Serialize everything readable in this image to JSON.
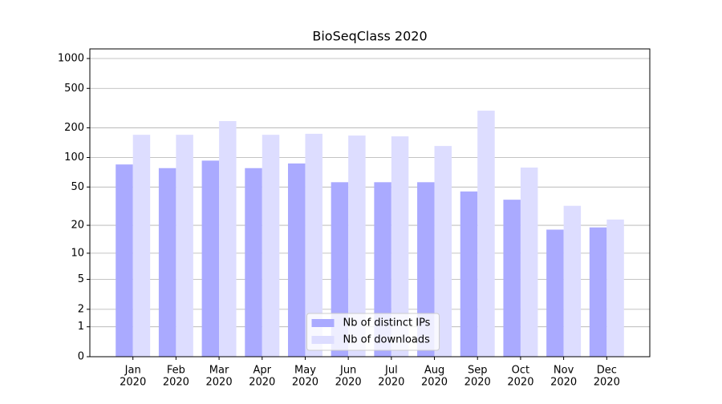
{
  "chart_data": {
    "type": "bar",
    "title": "BioSeqClass 2020",
    "categories": [
      [
        "Jan",
        "2020"
      ],
      [
        "Feb",
        "2020"
      ],
      [
        "Mar",
        "2020"
      ],
      [
        "Apr",
        "2020"
      ],
      [
        "May",
        "2020"
      ],
      [
        "Jun",
        "2020"
      ],
      [
        "Jul",
        "2020"
      ],
      [
        "Aug",
        "2020"
      ],
      [
        "Sep",
        "2020"
      ],
      [
        "Oct",
        "2020"
      ],
      [
        "Nov",
        "2020"
      ],
      [
        "Dec",
        "2020"
      ]
    ],
    "series": [
      {
        "name": "Nb of distinct IPs",
        "color": "#aaaaff",
        "values": [
          85,
          78,
          93,
          78,
          87,
          56,
          56,
          56,
          45,
          37,
          18,
          19
        ]
      },
      {
        "name": "Nb of downloads",
        "color": "#ddddff",
        "values": [
          170,
          170,
          234,
          170,
          174,
          167,
          164,
          131,
          298,
          79,
          32,
          23
        ]
      }
    ],
    "yscale": "log1p",
    "ylim": [
      0,
      1250
    ],
    "yticks": [
      0,
      1,
      2,
      5,
      10,
      20,
      50,
      100,
      200,
      500,
      1000
    ],
    "grid": true,
    "legend": "lower center"
  }
}
